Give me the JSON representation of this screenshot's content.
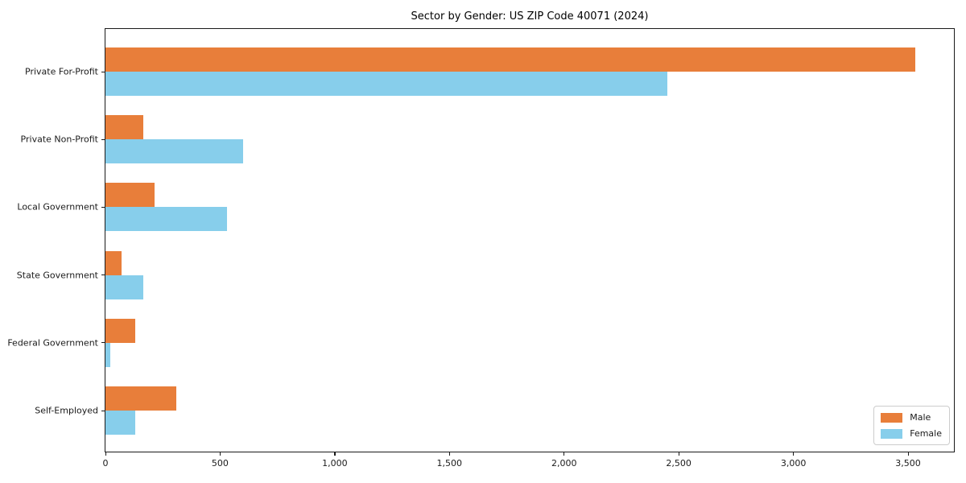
{
  "chart_data": {
    "type": "bar",
    "orientation": "horizontal",
    "title": "Sector by Gender: US ZIP Code 40071 (2024)",
    "categories": [
      "Private For-Profit",
      "Private Non-Profit",
      "Local Government",
      "State Government",
      "Federal Government",
      "Self-Employed"
    ],
    "series": [
      {
        "name": "Male",
        "color": "#E87E3A",
        "values": [
          3530,
          165,
          215,
          70,
          130,
          310
        ]
      },
      {
        "name": "Female",
        "color": "#87CEEB",
        "values": [
          2450,
          600,
          530,
          165,
          20,
          130
        ]
      }
    ],
    "xlabel": "",
    "ylabel": "",
    "xlim": [
      0,
      3707
    ],
    "xticks": {
      "values": [
        0,
        500,
        1000,
        1500,
        2000,
        2500,
        3000,
        3500
      ],
      "labels": [
        "0",
        "500",
        "1,000",
        "1,500",
        "2,000",
        "2,500",
        "3,000",
        "3,500"
      ]
    },
    "grid": false,
    "background": "#FFFFFF",
    "spine_color": "#1A1A1A",
    "legend": {
      "position": "lower-right"
    }
  }
}
